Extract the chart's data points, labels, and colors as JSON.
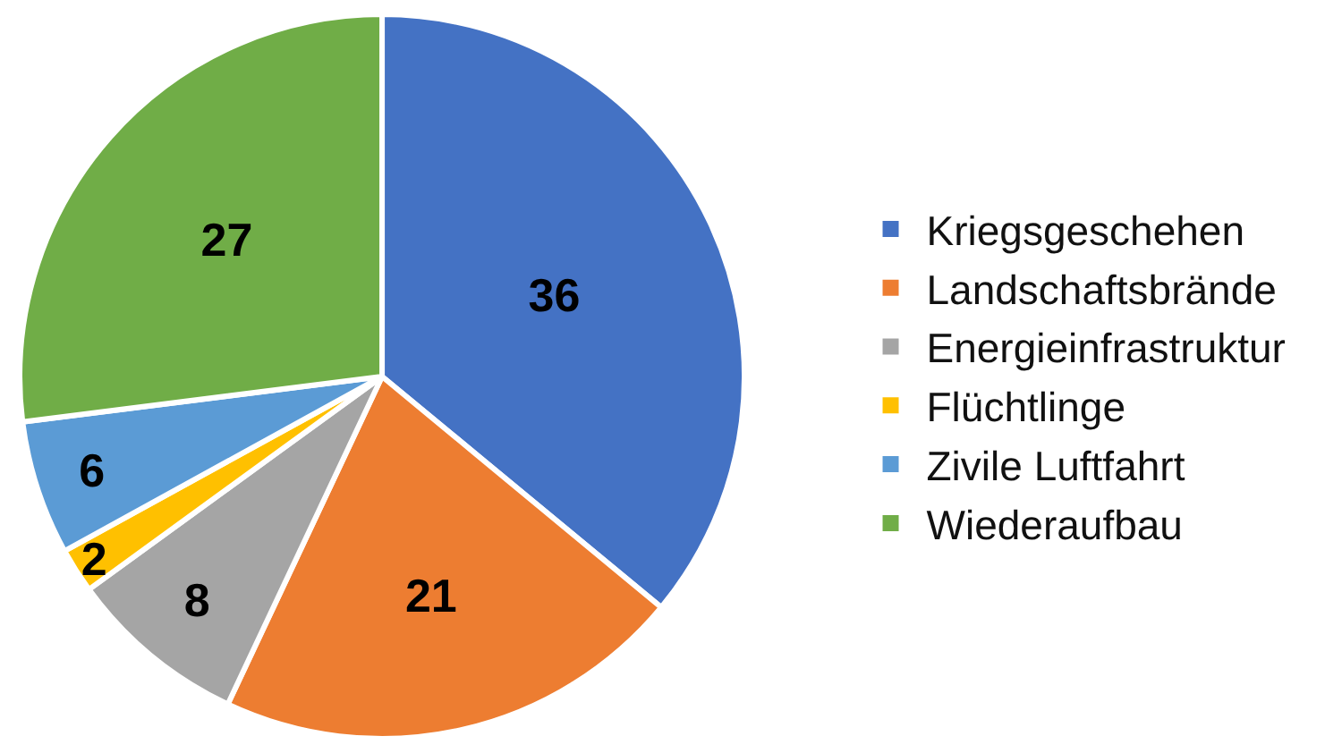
{
  "chart_data": {
    "type": "pie",
    "categories": [
      "Kriegsgeschehen",
      "Landschaftsbrände",
      "Energieinfrastruktur",
      "Flüchtlinge",
      "Zivile Luftfahrt",
      "Wiederaufbau"
    ],
    "values": [
      36,
      21,
      8,
      2,
      6,
      27
    ],
    "colors": [
      "#4472c4",
      "#ed7d31",
      "#a5a5a5",
      "#ffc000",
      "#5b9bd5",
      "#70ad47"
    ],
    "data_labels": true,
    "legend": "right"
  }
}
